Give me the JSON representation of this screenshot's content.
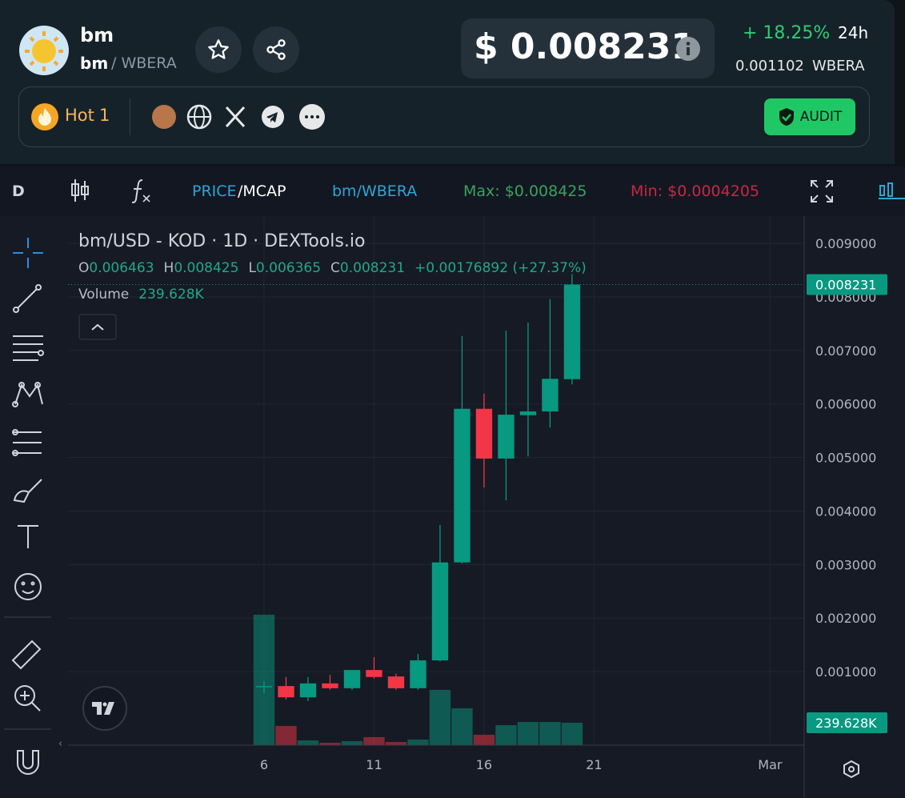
{
  "header": {
    "name": "bm",
    "pair_base": "bm",
    "pair_quote": "/ WBERA",
    "price": "$ 0.008231",
    "change": "+ 18.25%",
    "period": "24h",
    "quote_price": "0.001102",
    "quote_symbol": "WBERA",
    "hot_label": "Hot",
    "hot_rank": "1",
    "audit": "AUDIT"
  },
  "toolbar": {
    "interval": "D",
    "price": "PRICE",
    "mcap": "/MCAP",
    "pair": "bm/WBERA",
    "max": "Max: $0.008425",
    "min": "Min: $0.0004205"
  },
  "chart_data": {
    "type": "candlestick",
    "title": "bm/USD - KOD · 1D · DEXTools.io",
    "ohlc_labels": [
      "O",
      "H",
      "L",
      "C"
    ],
    "change": "+0.00176892 (+27.37%)",
    "volume_title": "Volume",
    "x": [
      6,
      7,
      8,
      9,
      10,
      11,
      12,
      13,
      14,
      15,
      16,
      17,
      18,
      19,
      20
    ],
    "open": [
      0.00071,
      0.00073,
      0.00052,
      0.00078,
      0.00069,
      0.00103,
      0.00091,
      0.00069,
      0.00121,
      0.00304,
      0.00591,
      0.00498,
      0.00579,
      0.00586,
      0.006463
    ],
    "high": [
      0.00082,
      0.0009,
      0.0009,
      0.00094,
      0.00103,
      0.00127,
      0.00096,
      0.00133,
      0.00374,
      0.00727,
      0.00619,
      0.00737,
      0.00752,
      0.00796,
      0.008425
    ],
    "low": [
      0.0006,
      0.00048,
      0.00045,
      0.00066,
      0.00066,
      0.00087,
      0.00066,
      0.00066,
      0.00119,
      0.00302,
      0.00444,
      0.0042,
      0.00502,
      0.00556,
      0.006365
    ],
    "close": [
      0.00073,
      0.00052,
      0.00078,
      0.00069,
      0.00103,
      0.0009,
      0.00069,
      0.00121,
      0.00304,
      0.00591,
      0.00498,
      0.0058,
      0.00586,
      0.00647,
      0.008231
    ],
    "up_color": "#089981",
    "down_color": "#f23645",
    "volume": {
      "values": [
        1395000,
        205000,
        51000,
        26000,
        43000,
        86000,
        34000,
        60000,
        591000,
        394000,
        111000,
        214000,
        248000,
        248000,
        239628
      ],
      "value_labels": [
        null,
        null,
        null,
        null,
        null,
        null,
        null,
        null,
        null,
        null,
        null,
        null,
        null,
        null,
        "239.628K"
      ]
    },
    "xlim": [
      -2.91,
      30.55
    ],
    "xticks": [
      6,
      11,
      16,
      21,
      {
        "value": 29,
        "label": "Mar"
      }
    ],
    "ylim": [
      -0.000374,
      0.00933
    ],
    "yticks": [
      {
        "value": 0.001,
        "label": "0.001000"
      },
      {
        "value": 0.002,
        "label": "0.002000"
      },
      {
        "value": 0.003,
        "label": "0.003000"
      },
      {
        "value": 0.004,
        "label": "0.004000"
      },
      {
        "value": 0.005,
        "label": "0.005000"
      },
      {
        "value": 0.006,
        "label": "0.006000"
      },
      {
        "value": 0.007,
        "label": "0.007000"
      },
      {
        "value": 0.008,
        "label": "0.008000"
      },
      {
        "value": 0.009,
        "label": "0.009000"
      }
    ],
    "grid": true
  }
}
